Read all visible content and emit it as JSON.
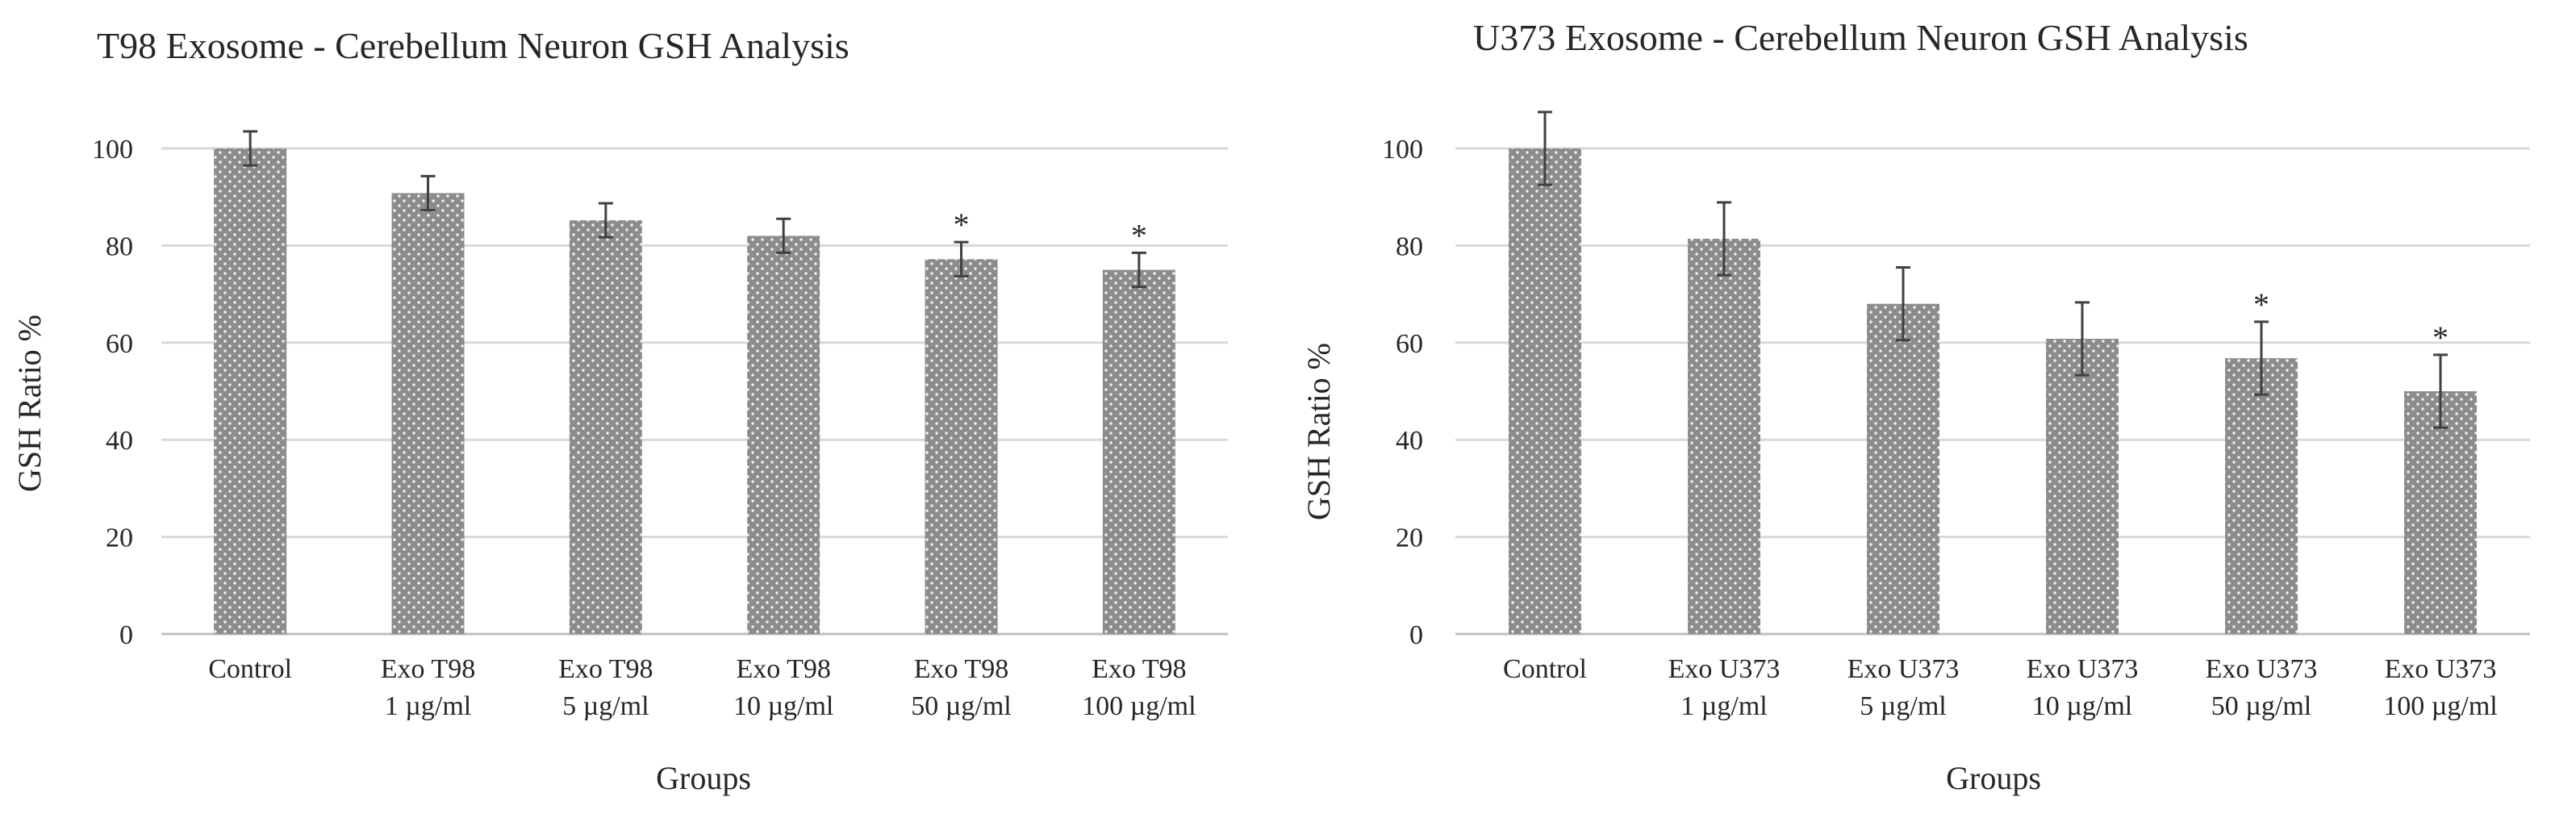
{
  "charts": [
    {
      "type": "bar",
      "title": "T98 Exosome - Cerebellum Neuron GSH Analysis",
      "xlabel": "Groups",
      "ylabel": "GSH Ratio %",
      "ylim": [
        0,
        100
      ],
      "yticks": [
        "0",
        "20",
        "40",
        "60",
        "80",
        "100"
      ],
      "grid": true,
      "categories": [
        [
          "Control"
        ],
        [
          "Exo T98",
          "1 µg/ml"
        ],
        [
          "Exo T98",
          "5 µg/ml"
        ],
        [
          "Exo T98",
          "10 µg/ml"
        ],
        [
          "Exo T98",
          "50 µg/ml"
        ],
        [
          "Exo T98",
          "100 µg/ml"
        ]
      ],
      "values": [
        100,
        90.8,
        85.2,
        82,
        77.2,
        75
      ],
      "errors": [
        3.5,
        3.5,
        3.5,
        3.5,
        3.5,
        3.5
      ],
      "significance": [
        "",
        "",
        "",
        "",
        "*",
        "*"
      ],
      "bar_color": "#8c8c8c",
      "dot_color": "#f2f2f2",
      "grid_color": "#d9d9d9"
    },
    {
      "type": "bar",
      "title": "U373 Exosome - Cerebellum Neuron GSH Analysis",
      "xlabel": "Groups",
      "ylabel": "GSH Ratio %",
      "ylim": [
        0,
        100
      ],
      "yticks": [
        "0",
        "20",
        "40",
        "60",
        "80",
        "100"
      ],
      "grid": true,
      "categories": [
        [
          "Control"
        ],
        [
          "Exo U373",
          "1 µg/ml"
        ],
        [
          "Exo U373",
          "5 µg/ml"
        ],
        [
          "Exo U373",
          "10 µg/ml"
        ],
        [
          "Exo U373",
          "50 µg/ml"
        ],
        [
          "Exo U373",
          "100 µg/ml"
        ]
      ],
      "values": [
        100,
        81.4,
        68,
        60.8,
        56.8,
        50
      ],
      "errors": [
        7.5,
        7.5,
        7.5,
        7.5,
        7.5,
        7.5
      ],
      "significance": [
        "",
        "",
        "",
        "",
        "*",
        "*"
      ],
      "bar_color": "#8c8c8c",
      "dot_color": "#f2f2f2",
      "grid_color": "#d9d9d9"
    }
  ]
}
